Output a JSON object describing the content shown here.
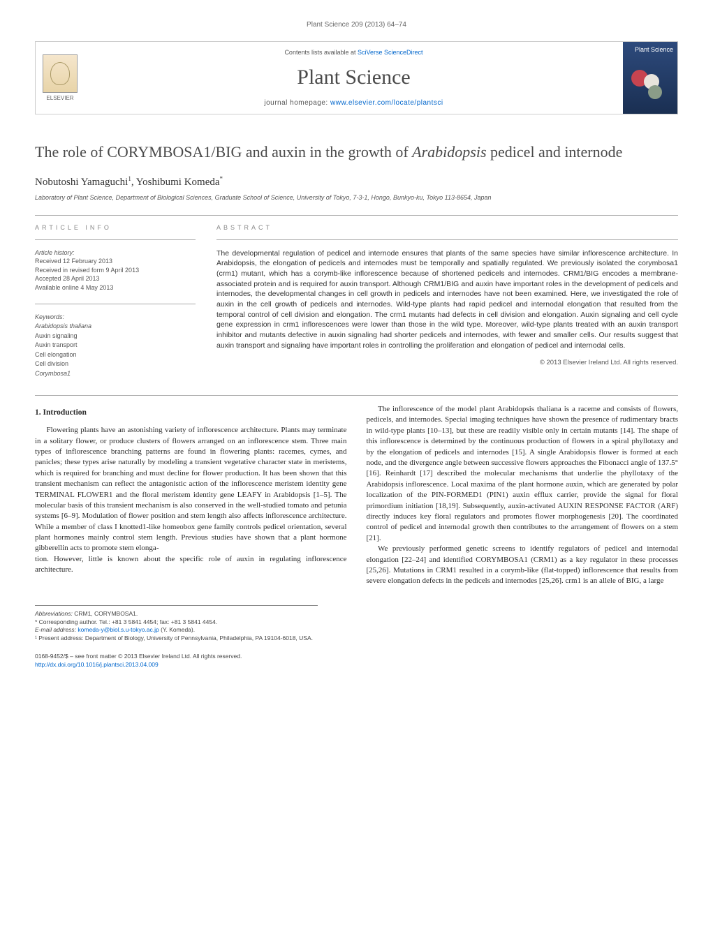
{
  "colors": {
    "link": "#0066cc",
    "text": "#333333",
    "muted": "#666666",
    "border": "#cccccc",
    "cover_bg_top": "#2d4a7c",
    "cover_bg_bottom": "#1a2f52"
  },
  "typography": {
    "body_font": "Georgia, serif",
    "ui_font": "Arial, sans-serif",
    "title_fontsize": 22,
    "journal_fontsize": 30,
    "body_fontsize": 11,
    "abstract_fontsize": 10.5,
    "info_fontsize": 9
  },
  "header": {
    "journal_ref": "Plant Science 209 (2013) 64–74",
    "contents_line_prefix": "Contents lists available at ",
    "contents_line_link": "SciVerse ScienceDirect",
    "journal_name": "Plant Science",
    "homepage_prefix": "journal homepage: ",
    "homepage_link": "www.elsevier.com/locate/plantsci",
    "publisher_label": "ELSEVIER",
    "cover_label": "Plant Science"
  },
  "article": {
    "title_pre": "The role of CORYMBOSA1/BIG and auxin in the growth of ",
    "title_em": "Arabidopsis",
    "title_post": " pedicel and internode",
    "authors_html": "Nobutoshi Yamaguchi¹, Yoshibumi Komeda*",
    "author1": "Nobutoshi Yamaguchi",
    "author1_sup": "1",
    "author2": "Yoshibumi Komeda",
    "author2_sup": "*",
    "affiliation": "Laboratory of Plant Science, Department of Biological Sciences, Graduate School of Science, University of Tokyo, 7-3-1, Hongo, Bunkyo-ku, Tokyo 113-8654, Japan"
  },
  "info": {
    "label": "article info",
    "history_title": "Article history:",
    "history": [
      "Received 12 February 2013",
      "Received in revised form 9 April 2013",
      "Accepted 28 April 2013",
      "Available online 4 May 2013"
    ],
    "keywords_title": "Keywords:",
    "keywords": [
      "Arabidopsis thaliana",
      "Auxin signaling",
      "Auxin transport",
      "Cell elongation",
      "Cell division",
      "Corymbosa1"
    ]
  },
  "abstract": {
    "label": "abstract",
    "text": "The developmental regulation of pedicel and internode ensures that plants of the same species have similar inflorescence architecture. In Arabidopsis, the elongation of pedicels and internodes must be temporally and spatially regulated. We previously isolated the corymbosa1 (crm1) mutant, which has a corymb-like inflorescence because of shortened pedicels and internodes. CRM1/BIG encodes a membrane-associated protein and is required for auxin transport. Although CRM1/BIG and auxin have important roles in the development of pedicels and internodes, the developmental changes in cell growth in pedicels and internodes have not been examined. Here, we investigated the role of auxin in the cell growth of pedicels and internodes. Wild-type plants had rapid pedicel and internodal elongation that resulted from the temporal control of cell division and elongation. The crm1 mutants had defects in cell division and elongation. Auxin signaling and cell cycle gene expression in crm1 inflorescences were lower than those in the wild type. Moreover, wild-type plants treated with an auxin transport inhibitor and mutants defective in auxin signaling had shorter pedicels and internodes, with fewer and smaller cells. Our results suggest that auxin transport and signaling have important roles in controlling the proliferation and elongation of pedicel and internodal cells.",
    "copyright": "© 2013 Elsevier Ireland Ltd. All rights reserved."
  },
  "body": {
    "heading1": "1. Introduction",
    "p1": "Flowering plants have an astonishing variety of inflorescence architecture. Plants may terminate in a solitary flower, or produce clusters of flowers arranged on an inflorescence stem. Three main types of inflorescence branching patterns are found in flowering plants: racemes, cymes, and panicles; these types arise naturally by modeling a transient vegetative character state in meristems, which is required for branching and must decline for flower production. It has been shown that this transient mechanism can reflect the antagonistic action of the inflorescence meristem identity gene TERMINAL FLOWER1 and the floral meristem identity gene LEAFY in Arabidopsis [1–5]. The molecular basis of this transient mechanism is also conserved in the well-studied tomato and petunia systems [6–9]. Modulation of flower position and stem length also affects inflorescence architecture. While a member of class I knotted1-like homeobox gene family controls pedicel orientation, several plant hormones mainly control stem length. Previous studies have shown that a plant hormone gibberellin acts to promote stem elonga-",
    "p2": "tion. However, little is known about the specific role of auxin in regulating inflorescence architecture.",
    "p3": "The inflorescence of the model plant Arabidopsis thaliana is a raceme and consists of flowers, pedicels, and internodes. Special imaging techniques have shown the presence of rudimentary bracts in wild-type plants [10–13], but these are readily visible only in certain mutants [14]. The shape of this inflorescence is determined by the continuous production of flowers in a spiral phyllotaxy and by the elongation of pedicels and internodes [15]. A single Arabidopsis flower is formed at each node, and the divergence angle between successive flowers approaches the Fibonacci angle of 137.5° [16]. Reinhardt [17] described the molecular mechanisms that underlie the phyllotaxy of the Arabidopsis inflorescence. Local maxima of the plant hormone auxin, which are generated by polar localization of the PIN-FORMED1 (PIN1) auxin efflux carrier, provide the signal for floral primordium initiation [18,19]. Subsequently, auxin-activated AUXIN RESPONSE FACTOR (ARF) directly induces key floral regulators and promotes flower morphogenesis [20]. The coordinated control of pedicel and internodal growth then contributes to the arrangement of flowers on a stem [21].",
    "p4": "We previously performed genetic screens to identify regulators of pedicel and internodal elongation [22–24] and identified CORYMBOSA1 (CRM1) as a key regulator in these processes [25,26]. Mutations in CRM1 resulted in a corymb-like (flat-topped) inflorescence that results from severe elongation defects in the pedicels and internodes [25,26]. crm1 is an allele of BIG, a large"
  },
  "footnotes": {
    "abbrev_label": "Abbreviations:",
    "abbrev": " CRM1, CORYMBOSA1.",
    "corr_label": "* ",
    "corr": "Corresponding author. Tel.: +81 3 5841 4454; fax: +81 3 5841 4454.",
    "email_label": "E-mail address: ",
    "email": "komeda-y@biol.s.u-tokyo.ac.jp",
    "email_suffix": " (Y. Komeda).",
    "present_label": "¹ ",
    "present": "Present address: Department of Biology, University of Pennsylvania, Philadelphia, PA 19104-6018, USA."
  },
  "bottom": {
    "issn": "0168-9452/$ – see front matter © 2013 Elsevier Ireland Ltd. All rights reserved.",
    "doi": "http://dx.doi.org/10.1016/j.plantsci.2013.04.009"
  }
}
